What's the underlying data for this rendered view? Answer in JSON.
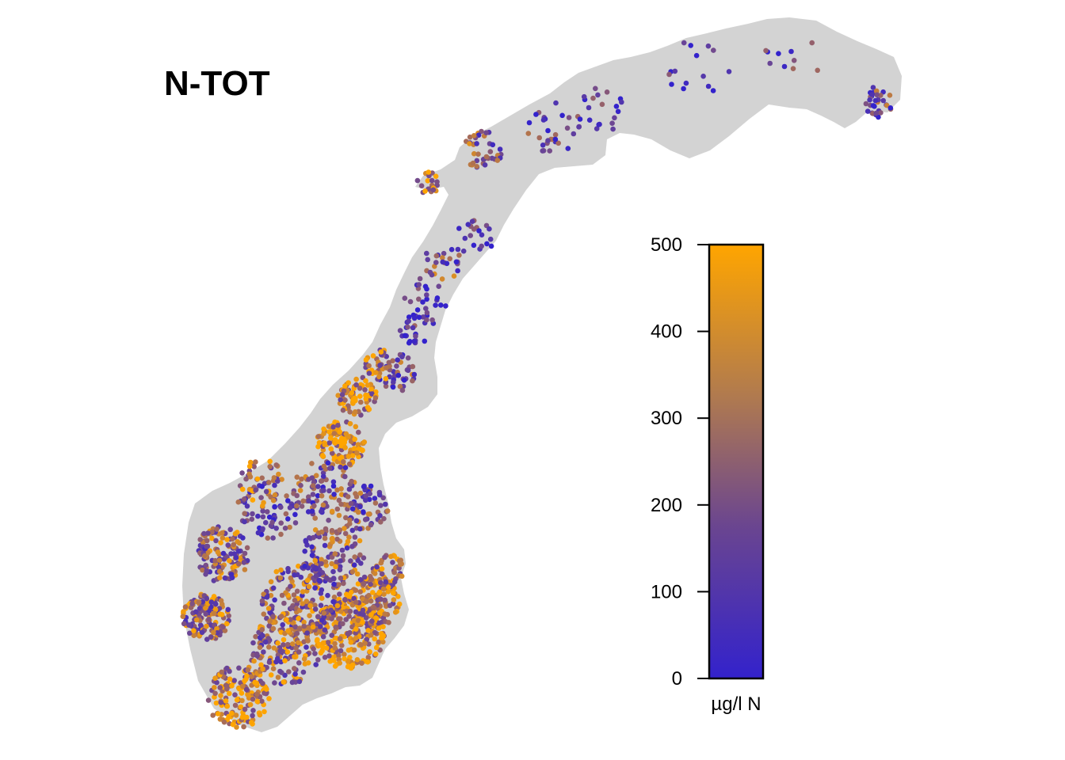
{
  "title": "N-TOT",
  "legend": {
    "unit": "µg/l N",
    "min": 0,
    "max": 500,
    "ticks": [
      "0",
      "100",
      "200",
      "300",
      "400",
      "500"
    ],
    "tick_values": [
      0,
      100,
      200,
      300,
      400,
      500
    ],
    "color_low": "#3322cc",
    "color_mid": "#7a4f86",
    "color_high": "#ffa500"
  },
  "colors": {
    "land": "#d3d3d3",
    "background": "#ffffff"
  }
}
